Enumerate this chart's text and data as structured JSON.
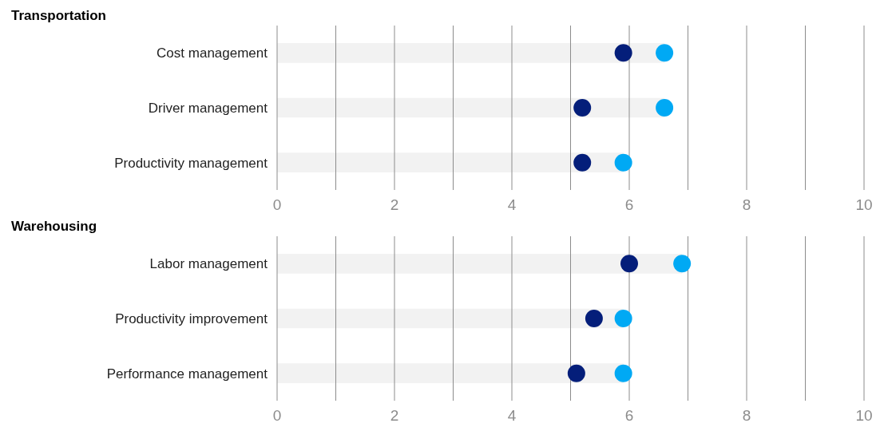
{
  "chart_data": [
    {
      "type": "scatter",
      "title": "Transportation",
      "orientation": "horizontal",
      "categories": [
        "Cost management",
        "Driver management",
        "Productivity management"
      ],
      "xlim": [
        0,
        10
      ],
      "xticks": [
        0,
        {
          "value": 1,
          "label": null
        },
        2,
        {
          "value": 3,
          "label": null
        },
        4,
        {
          "value": 5,
          "label": null
        },
        6,
        {
          "value": 7,
          "label": null
        },
        8,
        {
          "value": 9,
          "label": null
        },
        10
      ],
      "grid": "x",
      "marker": "circle",
      "series": [
        {
          "type": "bar",
          "color": "#f2f2f2",
          "values": [
            6.6,
            6.6,
            5.9
          ]
        },
        {
          "color": "#041e7a",
          "values": [
            5.9,
            5.2,
            5.2
          ]
        },
        {
          "color": "#00a9f4",
          "values": [
            6.6,
            6.6,
            5.9
          ]
        }
      ]
    },
    {
      "type": "scatter",
      "title": "Warehousing",
      "orientation": "horizontal",
      "categories": [
        "Labor management",
        "Productivity improvement",
        "Performance management"
      ],
      "xlim": [
        0,
        10
      ],
      "xticks": [
        0,
        {
          "value": 1,
          "label": null
        },
        2,
        {
          "value": 3,
          "label": null
        },
        4,
        {
          "value": 5,
          "label": null
        },
        6,
        {
          "value": 7,
          "label": null
        },
        8,
        {
          "value": 9,
          "label": null
        },
        10
      ],
      "grid": "x",
      "marker": "circle",
      "series": [
        {
          "type": "bar",
          "color": "#f2f2f2",
          "values": [
            6.9,
            5.9,
            5.9
          ]
        },
        {
          "color": "#041e7a",
          "values": [
            6.0,
            5.4,
            5.1
          ]
        },
        {
          "color": "#00a9f4",
          "values": [
            6.9,
            5.9,
            5.9
          ]
        }
      ]
    }
  ]
}
